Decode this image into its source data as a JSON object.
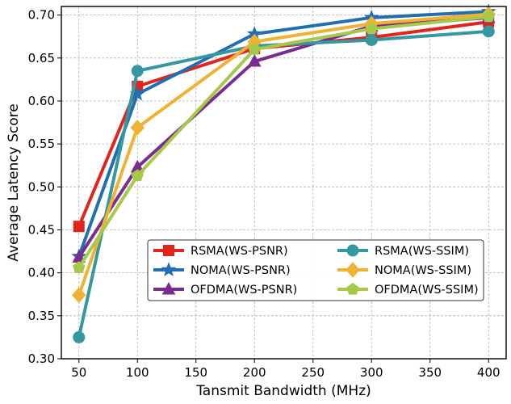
{
  "chart_data": {
    "type": "line",
    "title": "",
    "xlabel": "Tansmit Bandwidth (MHz)",
    "ylabel": "Average Latency Score",
    "xlim": [
      35,
      415
    ],
    "ylim": [
      0.3,
      0.71
    ],
    "x_ticks": [
      50,
      100,
      150,
      200,
      250,
      300,
      350,
      400
    ],
    "y_ticks": [
      0.3,
      0.35,
      0.4,
      0.45,
      0.5,
      0.55,
      0.6,
      0.65,
      0.7
    ],
    "x_tick_labels": [
      "50",
      "100",
      "150",
      "200",
      "250",
      "300",
      "350",
      "400"
    ],
    "y_tick_labels": [
      "0.30",
      "0.35",
      "0.40",
      "0.45",
      "0.50",
      "0.55",
      "0.60",
      "0.65",
      "0.70"
    ],
    "grid": true,
    "legend_position": "lower-right",
    "x": [
      50,
      100,
      200,
      300,
      400
    ],
    "series": [
      {
        "name": "RSMA(WS-PSNR)",
        "color": "#e3241b",
        "marker": "square",
        "values": [
          0.454,
          0.617,
          0.661,
          0.674,
          0.692
        ]
      },
      {
        "name": "NOMA(WS-PSNR)",
        "color": "#1f6fb2",
        "marker": "star",
        "values": [
          0.419,
          0.608,
          0.678,
          0.697,
          0.704
        ]
      },
      {
        "name": "OFDMA(WS-PSNR)",
        "color": "#7b2d8e",
        "marker": "triangle",
        "values": [
          0.418,
          0.523,
          0.646,
          0.687,
          0.697
        ]
      },
      {
        "name": "RSMA(WS-SSIM)",
        "color": "#3598a0",
        "marker": "circle",
        "values": [
          0.325,
          0.635,
          0.664,
          0.671,
          0.681
        ]
      },
      {
        "name": "NOMA(WS-SSIM)",
        "color": "#f0b232",
        "marker": "diamond",
        "values": [
          0.374,
          0.569,
          0.669,
          0.69,
          0.701
        ]
      },
      {
        "name": "OFDMA(WS-SSIM)",
        "color": "#a6c94a",
        "marker": "pentagon",
        "values": [
          0.406,
          0.513,
          0.66,
          0.684,
          0.698
        ]
      }
    ]
  }
}
